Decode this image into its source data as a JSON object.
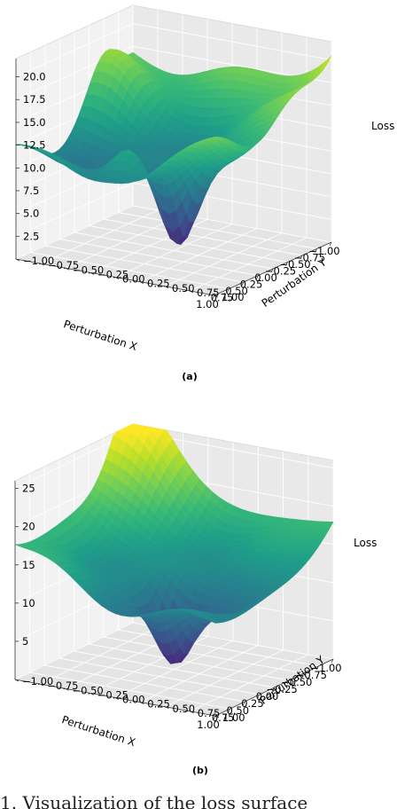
{
  "chart_data": [
    {
      "type": "surface",
      "panel": "(a)",
      "xlabel": "Perturbation X",
      "ylabel": "Perturbation Y",
      "zlabel": "Loss",
      "xticks": [
        "−1.00",
        "−0.75",
        "−0.50",
        "−0.25",
        "0.00",
        "0.25",
        "0.50",
        "0.75",
        "1.00"
      ],
      "yticks": [
        "−1.00",
        "−0.75",
        "−0.50",
        "−0.25",
        "0.00",
        "0.25",
        "0.50",
        "0.75",
        "1.00"
      ],
      "zticks": [
        "2.5",
        "5.0",
        "7.5",
        "10.0",
        "12.5",
        "15.0",
        "17.5",
        "20.0"
      ],
      "xlim": [
        -1,
        1
      ],
      "ylim": [
        -1,
        1
      ],
      "zlim": [
        0,
        22
      ],
      "colormap": "viridis",
      "grid": true
    },
    {
      "type": "surface",
      "panel": "(b)",
      "xlabel": "Perturbation X",
      "ylabel": "Perturbation Y",
      "zlabel": "Loss",
      "xticks": [
        "−1.00",
        "−0.75",
        "−0.50",
        "−0.25",
        "0.00",
        "0.25",
        "0.50",
        "0.75",
        "1.00"
      ],
      "yticks": [
        "−1.00",
        "−0.75",
        "−0.50",
        "−0.25",
        "0.00",
        "0.25",
        "0.50",
        "0.75",
        "1.00"
      ],
      "zticks": [
        "5",
        "10",
        "15",
        "20",
        "25"
      ],
      "xlim": [
        -1,
        1
      ],
      "ylim": [
        -1,
        1
      ],
      "zlim": [
        0,
        26
      ],
      "colormap": "viridis",
      "grid": true
    }
  ],
  "captions": {
    "a": "(a)",
    "b": "(b)"
  },
  "footer_text": "1. Visualization of the loss surface"
}
